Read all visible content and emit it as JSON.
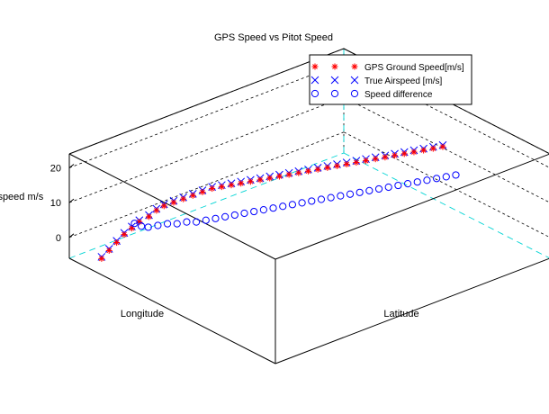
{
  "chart_data": {
    "type": "scatter",
    "title": "GPS Speed vs Pitot Speed",
    "xlabel": "Longitude",
    "ylabel": "Latitude",
    "zlabel": "Airspeed m/s",
    "z_ticks": [
      "20",
      "10",
      "0"
    ],
    "z_tick_values": [
      20,
      10,
      0
    ],
    "zlim": [
      -6,
      24
    ],
    "grid": true,
    "legend_position": "top-right",
    "series": [
      {
        "name": "GPS Ground Speed[m/s]",
        "marker": "asterisk",
        "color": "#ff0000",
        "points": [
          [
            0.08,
            0.05,
            -7
          ],
          [
            0.1,
            0.06,
            -5
          ],
          [
            0.12,
            0.07,
            -3
          ],
          [
            0.14,
            0.08,
            -1
          ],
          [
            0.16,
            0.09,
            0.5
          ],
          [
            0.18,
            0.1,
            2
          ],
          [
            0.2,
            0.12,
            3.5
          ],
          [
            0.22,
            0.13,
            5
          ],
          [
            0.24,
            0.14,
            6
          ],
          [
            0.26,
            0.16,
            7
          ],
          [
            0.28,
            0.18,
            8
          ],
          [
            0.3,
            0.2,
            9
          ],
          [
            0.32,
            0.22,
            10
          ],
          [
            0.34,
            0.24,
            11
          ],
          [
            0.36,
            0.26,
            11.5
          ],
          [
            0.38,
            0.28,
            12
          ],
          [
            0.4,
            0.3,
            12.5
          ],
          [
            0.42,
            0.32,
            13
          ],
          [
            0.44,
            0.34,
            13.5
          ],
          [
            0.46,
            0.36,
            14
          ],
          [
            0.48,
            0.38,
            14.5
          ],
          [
            0.5,
            0.4,
            15
          ],
          [
            0.52,
            0.42,
            15.5
          ],
          [
            0.54,
            0.44,
            16
          ],
          [
            0.56,
            0.46,
            16.5
          ],
          [
            0.58,
            0.48,
            17
          ],
          [
            0.6,
            0.5,
            17.5
          ],
          [
            0.62,
            0.52,
            18
          ],
          [
            0.64,
            0.54,
            18.5
          ],
          [
            0.66,
            0.56,
            19
          ],
          [
            0.68,
            0.58,
            19.5
          ],
          [
            0.7,
            0.6,
            20
          ],
          [
            0.72,
            0.62,
            20.5
          ],
          [
            0.74,
            0.64,
            21
          ],
          [
            0.76,
            0.66,
            21.5
          ],
          [
            0.78,
            0.68,
            22
          ],
          [
            0.8,
            0.7,
            22.5
          ],
          [
            0.82,
            0.72,
            23
          ]
        ]
      },
      {
        "name": "True Airspeed [m/s]",
        "marker": "x",
        "color": "#0000ff",
        "points": [
          [
            0.08,
            0.05,
            -6.5
          ],
          [
            0.1,
            0.06,
            -4.5
          ],
          [
            0.12,
            0.07,
            -2.5
          ],
          [
            0.14,
            0.08,
            -0.5
          ],
          [
            0.16,
            0.09,
            1
          ],
          [
            0.18,
            0.1,
            2.5
          ],
          [
            0.2,
            0.12,
            4
          ],
          [
            0.22,
            0.13,
            5.5
          ],
          [
            0.24,
            0.14,
            6.5
          ],
          [
            0.26,
            0.16,
            7.5
          ],
          [
            0.28,
            0.18,
            8.5
          ],
          [
            0.3,
            0.2,
            9.5
          ],
          [
            0.32,
            0.22,
            10.5
          ],
          [
            0.34,
            0.24,
            11.5
          ],
          [
            0.36,
            0.26,
            12
          ],
          [
            0.38,
            0.28,
            12.5
          ],
          [
            0.4,
            0.3,
            13
          ],
          [
            0.42,
            0.32,
            13.5
          ],
          [
            0.44,
            0.34,
            14
          ],
          [
            0.46,
            0.36,
            14.5
          ],
          [
            0.48,
            0.38,
            15
          ],
          [
            0.5,
            0.4,
            15.5
          ],
          [
            0.52,
            0.42,
            16
          ],
          [
            0.54,
            0.44,
            16.5
          ],
          [
            0.56,
            0.46,
            17
          ],
          [
            0.58,
            0.48,
            17.5
          ],
          [
            0.6,
            0.5,
            18
          ],
          [
            0.62,
            0.52,
            18.5
          ],
          [
            0.64,
            0.54,
            19
          ],
          [
            0.66,
            0.56,
            19.5
          ],
          [
            0.68,
            0.58,
            20
          ],
          [
            0.7,
            0.6,
            20.5
          ],
          [
            0.72,
            0.62,
            21
          ],
          [
            0.74,
            0.64,
            21.5
          ],
          [
            0.76,
            0.66,
            22
          ],
          [
            0.78,
            0.68,
            22.5
          ],
          [
            0.8,
            0.7,
            23
          ],
          [
            0.82,
            0.72,
            23.5
          ]
        ]
      },
      {
        "name": "Speed difference",
        "marker": "circle",
        "color": "#0000ff",
        "points": [
          [
            0.2,
            0.05,
            -0.5
          ],
          [
            0.21,
            0.07,
            -1
          ],
          [
            0.22,
            0.09,
            -1
          ],
          [
            0.24,
            0.11,
            -0.5
          ],
          [
            0.26,
            0.13,
            0
          ],
          [
            0.28,
            0.15,
            0
          ],
          [
            0.3,
            0.17,
            0.5
          ],
          [
            0.32,
            0.19,
            0.5
          ],
          [
            0.34,
            0.21,
            1
          ],
          [
            0.36,
            0.23,
            1.5
          ],
          [
            0.38,
            0.25,
            2
          ],
          [
            0.4,
            0.27,
            2.5
          ],
          [
            0.42,
            0.29,
            3
          ],
          [
            0.44,
            0.31,
            3.5
          ],
          [
            0.46,
            0.33,
            4
          ],
          [
            0.48,
            0.35,
            4.5
          ],
          [
            0.5,
            0.37,
            5
          ],
          [
            0.52,
            0.39,
            5.5
          ],
          [
            0.54,
            0.41,
            6
          ],
          [
            0.56,
            0.43,
            6.5
          ],
          [
            0.58,
            0.45,
            7
          ],
          [
            0.6,
            0.47,
            7.5
          ],
          [
            0.62,
            0.49,
            8
          ],
          [
            0.64,
            0.51,
            8.5
          ],
          [
            0.66,
            0.53,
            9
          ],
          [
            0.68,
            0.55,
            9.5
          ],
          [
            0.7,
            0.57,
            10
          ],
          [
            0.72,
            0.59,
            10.5
          ],
          [
            0.74,
            0.61,
            11
          ],
          [
            0.76,
            0.63,
            11.5
          ],
          [
            0.78,
            0.65,
            12
          ],
          [
            0.8,
            0.67,
            12.5
          ],
          [
            0.82,
            0.69,
            13
          ],
          [
            0.84,
            0.71,
            13.5
          ],
          [
            0.86,
            0.73,
            14
          ]
        ]
      }
    ]
  }
}
